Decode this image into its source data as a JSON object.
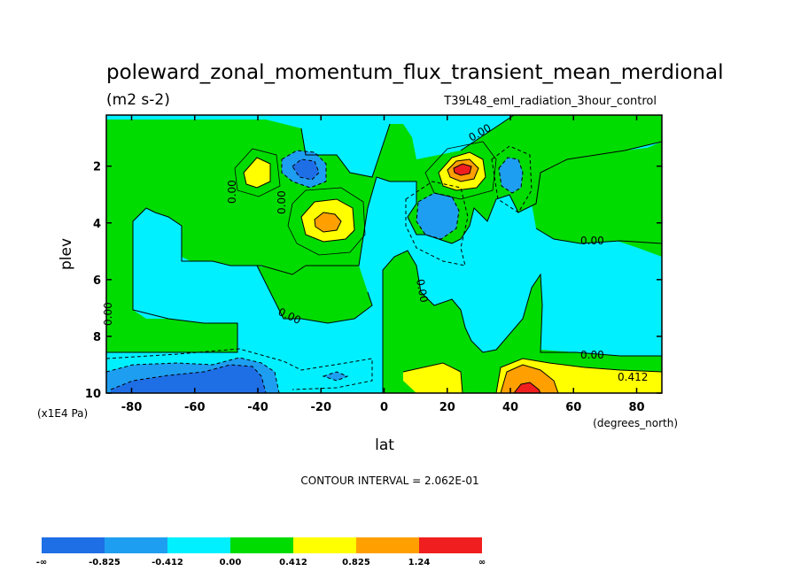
{
  "chart_data": {
    "type": "contour",
    "title": "poleward_zonal_momentum_flux_transient_mean_merdional",
    "units": "(m2 s-2)",
    "subtitle": "T39L48_eml_radiation_3hour_control",
    "xlabel": "lat",
    "x_units": "(degrees_north)",
    "ylabel": "plev",
    "y_units": "(x1E4 Pa)",
    "xlim": [
      -88,
      88
    ],
    "ylim": [
      10,
      0.2
    ],
    "x_ticks": [
      -80,
      -60,
      -40,
      -20,
      0,
      20,
      40,
      60,
      80
    ],
    "x_tick_labels": [
      "-80",
      "-60",
      "-40",
      "-20",
      "0",
      "20",
      "40",
      "60",
      "80"
    ],
    "y_ticks": [
      2,
      4,
      6,
      8,
      10
    ],
    "y_tick_labels": [
      "2",
      "4",
      "6",
      "8",
      "10"
    ],
    "contour_interval_text": "CONTOUR INTERVAL = 2.062E-01",
    "contour_labels": [
      "0.00",
      "0.00",
      "0.00",
      "0.00",
      "0.00",
      "0.00",
      "0.00",
      "0.00",
      "0.412"
    ],
    "colorbar": {
      "boundary_labels": [
        "-∞",
        "-0.825",
        "-0.412",
        "0.00",
        "0.412",
        "0.825",
        "1.24",
        "∞"
      ],
      "colors": [
        "#1e6ee6",
        "#1e9ef0",
        "#00f0ff",
        "#00dc00",
        "#ffff00",
        "#ffa000",
        "#f01e1e"
      ]
    },
    "features": [
      {
        "type": "max",
        "lat": -38,
        "plev": 2.2,
        "level": "0.412-0.825"
      },
      {
        "type": "min",
        "lat": -24,
        "plev": 2.0,
        "level": "<-0.825"
      },
      {
        "type": "max",
        "lat": -18,
        "plev": 3.9,
        "level": "0.825-1.24"
      },
      {
        "type": "max",
        "lat": 27,
        "plev": 2.0,
        "level": ">1.24"
      },
      {
        "type": "min",
        "lat": 20,
        "plev": 3.6,
        "level": "-0.825 to -0.412"
      },
      {
        "type": "min",
        "lat": 40,
        "plev": 2.3,
        "level": "-0.825 to -0.412"
      },
      {
        "type": "min",
        "lat": -40,
        "plev": 9.6,
        "level": "<-0.825"
      },
      {
        "type": "max",
        "lat": 45,
        "plev": 9.8,
        "level": ">1.24"
      },
      {
        "type": "max",
        "lat": 18,
        "plev": 9.4,
        "level": "0.412-0.825"
      }
    ]
  }
}
